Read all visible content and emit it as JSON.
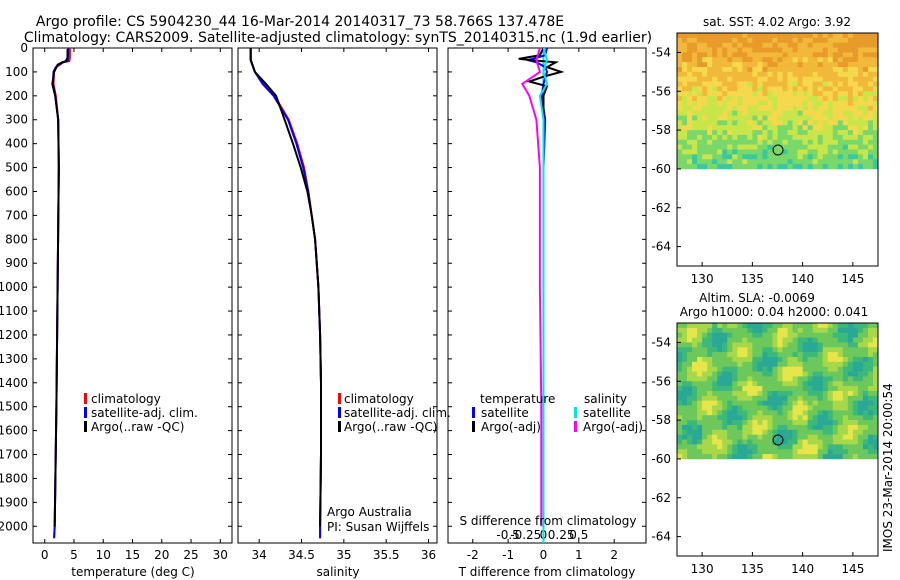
{
  "header": {
    "title_line1": "Argo profile: CS 5904230_44 16-Mar-2014 20140317_73 58.766S 137.478E",
    "title_line2": "Climatology: CARS2009. Satellite-adjusted climatology: synTS_20140315.nc (1.9d earlier)"
  },
  "footer": {
    "stamp": "IMOS 23-Mar-2014 20:00:54",
    "credit_line1": "Argo Australia",
    "credit_line2": "PI: Susan Wijffels"
  },
  "depth_ticks": [
    0,
    100,
    200,
    300,
    400,
    500,
    600,
    700,
    800,
    900,
    1000,
    1100,
    1200,
    1300,
    1400,
    1500,
    1600,
    1700,
    1800,
    1900,
    2000
  ],
  "colors": {
    "climatology": "#ff0000",
    "satellite": "#0000ff",
    "argo": "#000000",
    "sal_sat": "#00e5e5",
    "sal_argo": "#ff00ff"
  },
  "chart_data": [
    {
      "type": "line",
      "xlabel": "temperature (deg C)",
      "ylabel": "",
      "xlim": [
        -2,
        32
      ],
      "ylim": [
        2070,
        0
      ],
      "xticks": [
        0,
        5,
        10,
        15,
        20,
        25,
        30
      ],
      "legend": {
        "placement": "bottom-right",
        "items": [
          "climatology",
          "satellite-adj. clim.",
          "Argo(..raw -QC)"
        ]
      },
      "series": [
        {
          "name": "climatology",
          "depth": [
            0,
            40,
            55,
            60,
            80,
            100,
            150,
            200,
            300,
            500,
            1000,
            1500,
            2000,
            2050
          ],
          "values": [
            4.3,
            4.3,
            4.2,
            3.2,
            2.0,
            1.6,
            1.5,
            1.9,
            2.3,
            2.4,
            2.2,
            2.0,
            1.7,
            1.6
          ]
        },
        {
          "name": "satellite-adj. clim.",
          "depth": [
            0,
            40,
            55,
            60,
            80,
            100,
            150,
            200,
            300,
            500,
            1000,
            1500,
            2000,
            2050
          ],
          "values": [
            4.0,
            4.0,
            3.9,
            3.0,
            1.9,
            1.5,
            1.4,
            1.8,
            2.3,
            2.4,
            2.2,
            2.0,
            1.7,
            1.6
          ]
        },
        {
          "name": "Argo(..raw -QC)",
          "depth": [
            5,
            20,
            40,
            55,
            60,
            70,
            100,
            150,
            200,
            300,
            500,
            1000,
            1500,
            2000
          ],
          "values": [
            3.9,
            3.9,
            3.9,
            3.6,
            3.0,
            2.2,
            1.6,
            1.3,
            1.8,
            2.3,
            2.4,
            2.2,
            2.0,
            1.7
          ]
        }
      ]
    },
    {
      "type": "line",
      "xlabel": "salinity",
      "ylabel": "",
      "xlim": [
        33.75,
        36.1
      ],
      "ylim": [
        2070,
        0
      ],
      "xticks": [
        34,
        34.5,
        35,
        35.5,
        36
      ],
      "legend": {
        "placement": "bottom-right",
        "items": [
          "climatology",
          "satellite-adj. clim.",
          "Argo(..raw -QC)"
        ]
      },
      "series": [
        {
          "name": "climatology",
          "depth": [
            0,
            50,
            100,
            150,
            200,
            300,
            400,
            500,
            600,
            700,
            800,
            1000,
            1200,
            1400,
            1700,
            2000,
            2050
          ],
          "values": [
            33.9,
            33.9,
            33.95,
            34.05,
            34.18,
            34.35,
            34.45,
            34.53,
            34.58,
            34.62,
            34.66,
            34.7,
            34.72,
            34.73,
            34.73,
            34.72,
            34.72
          ]
        },
        {
          "name": "satellite-adj. clim.",
          "depth": [
            0,
            50,
            100,
            150,
            200,
            300,
            400,
            500,
            600,
            700,
            800,
            1000,
            1200,
            1400,
            1700,
            2000,
            2050
          ],
          "values": [
            33.9,
            33.9,
            33.95,
            34.04,
            34.17,
            34.34,
            34.44,
            34.52,
            34.58,
            34.62,
            34.66,
            34.7,
            34.72,
            34.73,
            34.73,
            34.72,
            34.72
          ]
        },
        {
          "name": "Argo(..raw -QC)",
          "depth": [
            0,
            50,
            100,
            150,
            200,
            300,
            400,
            500,
            600,
            700,
            800,
            1000,
            1200,
            1400,
            1700,
            2000
          ],
          "values": [
            33.9,
            33.9,
            33.95,
            34.08,
            34.2,
            34.3,
            34.4,
            34.49,
            34.57,
            34.62,
            34.66,
            34.7,
            34.72,
            34.73,
            34.73,
            34.72
          ]
        }
      ]
    },
    {
      "type": "line",
      "xlabel": "T difference from climatology",
      "secondary_xlabel": "S difference from climatology",
      "ylabel": "",
      "xlim": [
        -2.7,
        2.9
      ],
      "ylim": [
        2070,
        0
      ],
      "xticks": [
        -2,
        -1,
        0,
        1,
        2
      ],
      "secondary_xticks": [
        {
          "label": "-0.5",
          "pos": -1
        },
        {
          "label": "-0.25",
          "pos": -0.5
        },
        {
          "label": "0",
          "pos": 0
        },
        {
          "label": "0.25",
          "pos": 0.5
        },
        {
          "label": "0.5",
          "pos": 1
        }
      ],
      "legend": {
        "placement": "bottom",
        "col1_title": "temperature",
        "col1_items": [
          "satellite",
          "Argo(-adj)"
        ],
        "col2_title": "salinity",
        "col2_items": [
          "satellite",
          "Argo(-adj)"
        ]
      },
      "series": [
        {
          "name": "T satellite",
          "depth": [
            0,
            30,
            45,
            50,
            60,
            80,
            100,
            150,
            200,
            300,
            500,
            1000,
            1500,
            2000
          ],
          "values": [
            0.1,
            0.05,
            -0.3,
            -0.45,
            -0.2,
            0.05,
            0.1,
            0.0,
            -0.05,
            0.05,
            0.0,
            0.0,
            0.0,
            0.0
          ]
        },
        {
          "name": "T Argo(-adj)",
          "depth": [
            0,
            30,
            40,
            45,
            50,
            60,
            80,
            100,
            120,
            140,
            160,
            200,
            300,
            500,
            1000,
            1500,
            2000
          ],
          "values": [
            0.0,
            -0.1,
            -0.5,
            -0.7,
            -0.4,
            0.35,
            0.1,
            0.5,
            0.0,
            -0.4,
            0.1,
            0.0,
            0.0,
            0.0,
            0.0,
            0.0,
            0.0
          ]
        },
        {
          "name": "S satellite",
          "depth": [
            0,
            50,
            100,
            150,
            200,
            300,
            500,
            1000,
            1500,
            2000
          ],
          "values": [
            0.0,
            0.05,
            0.0,
            0.05,
            -0.05,
            0.0,
            0.0,
            0.0,
            0.0,
            0.0
          ]
        },
        {
          "name": "S Argo(-adj)",
          "depth": [
            0,
            50,
            100,
            150,
            200,
            300,
            500,
            800,
            1000,
            1500,
            2000
          ],
          "values": [
            -0.05,
            -0.1,
            -0.05,
            -0.3,
            -0.2,
            -0.1,
            -0.05,
            -0.05,
            -0.05,
            -0.03,
            -0.03
          ]
        }
      ]
    },
    {
      "type": "heatmap",
      "title": "sat. SST: 4.02  Argo: 3.92",
      "xlim": [
        127.5,
        147.5
      ],
      "ylim": [
        -65,
        -53
      ],
      "data_ylim": [
        -60,
        -53
      ],
      "xticks": [
        130,
        135,
        140,
        145
      ],
      "yticks": [
        -54,
        -56,
        -58,
        -60,
        -62,
        -64
      ],
      "marker": {
        "lon": 137.478,
        "lat": -58.766
      }
    },
    {
      "type": "heatmap",
      "title_line1": "Altim. SLA: -0.0069",
      "title_line2": "Argo h1000: 0.04  h2000: 0.041",
      "xlim": [
        127.5,
        147.5
      ],
      "ylim": [
        -65,
        -53
      ],
      "data_ylim": [
        -60,
        -53
      ],
      "xticks": [
        130,
        135,
        140,
        145
      ],
      "yticks": [
        -54,
        -56,
        -58,
        -60,
        -62,
        -64
      ],
      "marker": {
        "lon": 137.478,
        "lat": -58.766
      }
    }
  ]
}
